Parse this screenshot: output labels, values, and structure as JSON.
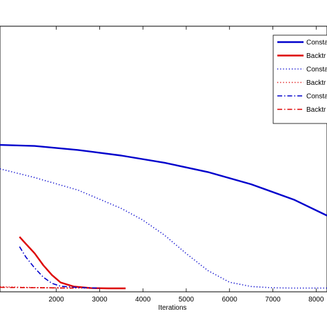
{
  "chart_data": {
    "type": "line",
    "xlabel": "Iterations",
    "ylabel": "",
    "xlim": [
      700,
      8250
    ],
    "ylim": [
      0,
      1
    ],
    "x_ticks": [
      2000,
      3000,
      4000,
      5000,
      6000,
      7000,
      8000
    ],
    "x_tick_labels": [
      "2000",
      "3000",
      "4000",
      "5000",
      "6000",
      "7000",
      "8000"
    ],
    "legend_position": "top-right",
    "colors": {
      "blue": "#0000cc",
      "red": "#dd0000"
    },
    "series": [
      {
        "name": "Consta",
        "color": "#0000cc",
        "style": "solid",
        "x": [
          700,
          1500,
          2500,
          3500,
          4500,
          5500,
          6500,
          7500,
          8250
        ],
        "y": [
          0.553,
          0.549,
          0.534,
          0.513,
          0.486,
          0.451,
          0.405,
          0.346,
          0.287
        ]
      },
      {
        "name": "Backtr",
        "color": "#dd0000",
        "style": "solid",
        "x": [
          1150,
          1300,
          1500,
          1700,
          1900,
          2100,
          2400,
          2800,
          3200,
          3600
        ],
        "y": [
          0.207,
          0.18,
          0.145,
          0.1,
          0.063,
          0.035,
          0.02,
          0.014,
          0.013,
          0.013
        ]
      },
      {
        "name": "Consta",
        "color": "#0000cc",
        "style": "dotted",
        "x": [
          700,
          1500,
          2500,
          3500,
          4000,
          4500,
          5000,
          5500,
          6000,
          6500,
          7000,
          7500,
          8250
        ],
        "y": [
          0.463,
          0.43,
          0.383,
          0.314,
          0.27,
          0.213,
          0.144,
          0.08,
          0.036,
          0.02,
          0.015,
          0.014,
          0.014
        ]
      },
      {
        "name": "Backtr",
        "color": "#dd0000",
        "style": "dotted",
        "x": [
          700,
          1200,
          1800,
          2400,
          3000
        ],
        "y": [
          0.019,
          0.017,
          0.015,
          0.014,
          0.014
        ]
      },
      {
        "name": "Consta",
        "color": "#0000cc",
        "style": "dashdot",
        "x": [
          1150,
          1300,
          1500,
          1700,
          1900,
          2100,
          2500,
          3000
        ],
        "y": [
          0.17,
          0.13,
          0.09,
          0.055,
          0.032,
          0.021,
          0.016,
          0.014
        ]
      },
      {
        "name": "Backtr",
        "color": "#dd0000",
        "style": "dashdot",
        "x": [
          700,
          1200,
          1800,
          2400
        ],
        "y": [
          0.017,
          0.016,
          0.015,
          0.014
        ]
      }
    ]
  }
}
